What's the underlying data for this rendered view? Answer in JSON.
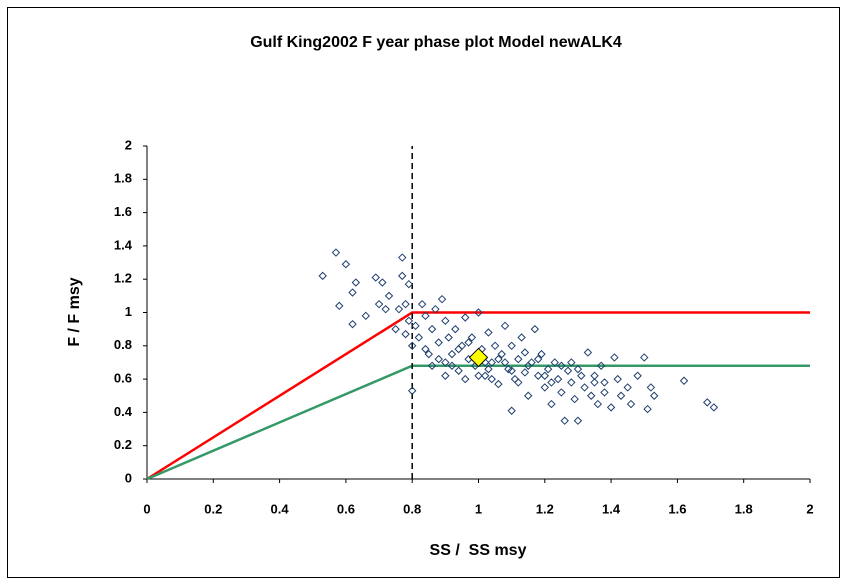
{
  "chart_data": {
    "type": "scatter",
    "title": "Gulf King2002 F year phase plot Model newALK4",
    "x_label": "SS /  SS msy",
    "y_label": "F / F msy",
    "xlim": [
      0,
      2
    ],
    "ylim": [
      0,
      2
    ],
    "xticks": [
      0,
      0.2,
      0.4,
      0.6,
      0.8,
      1,
      1.2,
      1.4,
      1.6,
      1.8,
      2
    ],
    "yticks": [
      0,
      0.2,
      0.4,
      0.6,
      0.8,
      1,
      1.2,
      1.4,
      1.6,
      1.8,
      2
    ],
    "grid": false,
    "series": [
      {
        "kind": "points",
        "marker": "diamond",
        "color": "#1f3f6e",
        "marker_fill": "none",
        "x": [
          0.53,
          0.57,
          0.58,
          0.6,
          0.62,
          0.62,
          0.63,
          0.66,
          0.69,
          0.7,
          0.71,
          0.72,
          0.73,
          0.75,
          0.76,
          0.77,
          0.77,
          0.78,
          0.78,
          0.79,
          0.79,
          0.8,
          0.8,
          0.81,
          0.82,
          0.83,
          0.84,
          0.85,
          0.86,
          0.87,
          0.88,
          0.89,
          0.9,
          0.9,
          0.91,
          0.92,
          0.93,
          0.94,
          0.95,
          0.96,
          0.97,
          0.98,
          0.99,
          1,
          1.01,
          1.02,
          1.03,
          1.04,
          1.05,
          1.06,
          1.07,
          1.08,
          1.09,
          1.1,
          1.1,
          1.11,
          1.12,
          1.13,
          1.14,
          1.15,
          1.16,
          1.17,
          1.18,
          1.19,
          1.2,
          1.21,
          1.22,
          1.23,
          1.24,
          1.25,
          1.26,
          1.27,
          1.28,
          1.29,
          1.3,
          1.31,
          1.32,
          1.33,
          1.34,
          1.35,
          1.36,
          1.37,
          1.38,
          1.4,
          1.41,
          1.42,
          1.43,
          1.45,
          1.46,
          1.48,
          1.5,
          1.51,
          1.52,
          1.53,
          1.62,
          1.69,
          1.71,
          0.88,
          0.92,
          0.96,
          1,
          1.03,
          1.06,
          0.94,
          0.97,
          1.04,
          1.12,
          1.15,
          1.18,
          1.08,
          0.86,
          0.84,
          1,
          1.02,
          1.1,
          1.2,
          1.25,
          1.14,
          0.9,
          1.35,
          1.28,
          1.22,
          1.38,
          1.3
        ],
        "values": [
          1.22,
          1.36,
          1.04,
          1.29,
          1.12,
          0.93,
          1.18,
          0.98,
          1.21,
          1.05,
          1.18,
          1.02,
          1.1,
          0.9,
          1.02,
          1.22,
          1.33,
          0.87,
          1.05,
          0.95,
          1.17,
          0.53,
          0.8,
          0.92,
          0.85,
          1.05,
          0.98,
          0.75,
          0.9,
          1.02,
          0.82,
          1.08,
          0.7,
          0.95,
          0.85,
          0.75,
          0.9,
          0.65,
          0.8,
          0.97,
          0.72,
          0.85,
          0.68,
          1,
          0.78,
          0.62,
          0.88,
          0.7,
          0.8,
          0.57,
          0.75,
          0.92,
          0.66,
          0.41,
          0.8,
          0.6,
          0.72,
          0.85,
          0.64,
          0.5,
          0.7,
          0.9,
          0.62,
          0.75,
          0.55,
          0.66,
          0.45,
          0.7,
          0.6,
          0.52,
          0.35,
          0.65,
          0.58,
          0.48,
          0.35,
          0.62,
          0.55,
          0.76,
          0.5,
          0.58,
          0.45,
          0.68,
          0.52,
          0.43,
          0.73,
          0.6,
          0.5,
          0.55,
          0.45,
          0.62,
          0.73,
          0.42,
          0.55,
          0.5,
          0.59,
          0.46,
          0.43,
          0.72,
          0.68,
          0.6,
          0.75,
          0.66,
          0.72,
          0.78,
          0.82,
          0.6,
          0.58,
          0.68,
          0.72,
          0.7,
          0.68,
          0.78,
          0.62,
          0.7,
          0.65,
          0.62,
          0.68,
          0.76,
          0.62,
          0.62,
          0.7,
          0.58,
          0.58,
          0.66
        ]
      },
      {
        "kind": "line",
        "color": "#ff0000",
        "x": [
          0,
          0.8,
          2
        ],
        "values": [
          0,
          1,
          1
        ]
      },
      {
        "kind": "line",
        "color": "#339966",
        "x": [
          0,
          0.8,
          2
        ],
        "values": [
          0,
          0.68,
          0.68
        ]
      },
      {
        "kind": "line",
        "color": "#000000",
        "dashed": true,
        "x": [
          0.8,
          0.8
        ],
        "values": [
          0,
          2
        ]
      },
      {
        "kind": "points",
        "marker": "diamond",
        "color": "#000000",
        "marker_fill": "#ffff00",
        "large": true,
        "x": [
          1
        ],
        "values": [
          0.73
        ]
      }
    ]
  }
}
